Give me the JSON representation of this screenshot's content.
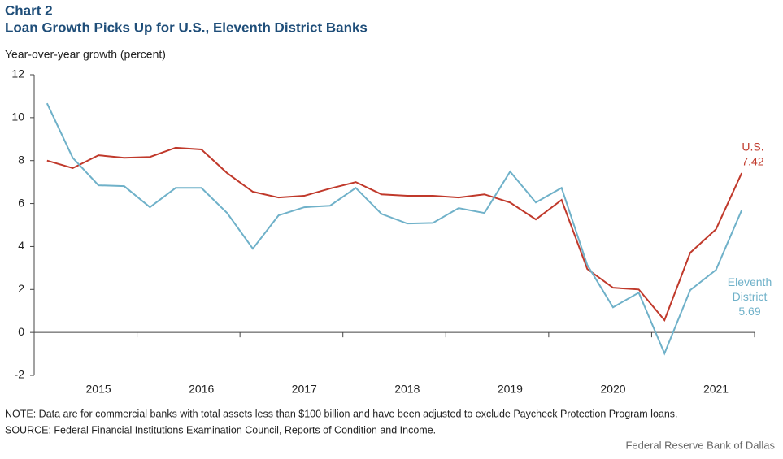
{
  "chart_data": {
    "type": "line",
    "title": "Chart 2",
    "subtitle": "Loan Growth Picks Up for U.S., Eleventh District Banks",
    "y_label": "Year-over-year  growth  (percent)",
    "categories": [
      null,
      null,
      "2015",
      null,
      null,
      null,
      "2016",
      null,
      null,
      null,
      "2017",
      null,
      null,
      null,
      "2018",
      null,
      null,
      null,
      "2019",
      null,
      null,
      null,
      "2020",
      null,
      null,
      null,
      "2021",
      null
    ],
    "series": [
      {
        "name": "U.S.",
        "color": "#c0392b",
        "values": [
          8.0,
          7.65,
          8.25,
          8.13,
          8.17,
          8.6,
          8.52,
          7.42,
          6.55,
          6.28,
          6.36,
          6.7,
          7.0,
          6.43,
          6.36,
          6.36,
          6.28,
          6.43,
          6.05,
          5.26,
          6.17,
          2.95,
          2.08,
          2.0,
          0.57,
          3.71,
          4.8,
          7.42
        ]
      },
      {
        "name": "Eleventh District",
        "color": "#6fb1c9",
        "values": [
          10.67,
          8.13,
          6.85,
          6.81,
          5.83,
          6.73,
          6.73,
          5.56,
          3.9,
          5.45,
          5.83,
          5.9,
          6.73,
          5.52,
          5.07,
          5.1,
          5.79,
          5.56,
          7.49,
          6.05,
          6.73,
          3.14,
          1.17,
          1.85,
          -0.98,
          1.97,
          2.91,
          5.69
        ]
      }
    ],
    "ylim": [
      -2,
      12
    ],
    "yticks": [
      -2,
      0,
      2,
      4,
      6,
      8,
      10,
      12
    ],
    "grid": false,
    "note": "NOTE:  Data are for commercial banks with total assets less than $100 billion and have been adjusted to exclude Paycheck Protection Program loans.",
    "source": "SOURCE:  Federal Financial Institutions Examination Council, Reports of Condition and Income.",
    "credit": "Federal Reserve Bank of Dallas"
  }
}
